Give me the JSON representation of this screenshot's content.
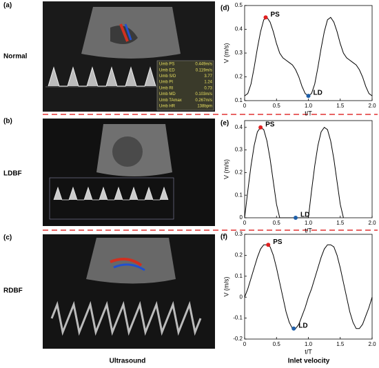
{
  "panels": [
    {
      "label": "(a)",
      "row": "Normal"
    },
    {
      "label": "(b)",
      "row": "LDBF"
    },
    {
      "label": "(c)",
      "row": "RDBF"
    }
  ],
  "ultrasound_table": [
    [
      "Umb PS",
      "0.449m/s"
    ],
    [
      "Umb ED",
      "0.119m/s"
    ],
    [
      "Umb S/D",
      "3.77"
    ],
    [
      "Umb PI",
      "1.24"
    ],
    [
      "Umb RI",
      "0.73"
    ],
    [
      "Umb MD",
      "0.103m/s"
    ],
    [
      "Umb TAmax",
      "0.267m/s"
    ],
    [
      "Umb HR",
      "138bpm"
    ]
  ],
  "captions": [
    "Ultrasound",
    "Inlet velocity"
  ],
  "chart_data": [
    {
      "type": "line",
      "panel": "(d)",
      "xlabel": "t/T",
      "ylabel": "V (m/s)",
      "xlim": [
        0,
        2
      ],
      "xticks": [
        0,
        0.5,
        {
          "value": 1,
          "label": "1.0"
        },
        1.5,
        {
          "value": 2,
          "label": "2.0"
        }
      ],
      "ylim": [
        0.1,
        0.5
      ],
      "yticks": [
        0.1,
        0.2,
        0.3,
        0.4,
        0.5
      ],
      "x": [
        0,
        0.05,
        0.1,
        0.15,
        0.2,
        0.25,
        0.3,
        0.35,
        0.4,
        0.45,
        0.5,
        0.55,
        0.6,
        0.65,
        0.7,
        0.75,
        0.8,
        0.85,
        0.9,
        0.95,
        1,
        1.05,
        1.1,
        1.15,
        1.2,
        1.25,
        1.3,
        1.35,
        1.4,
        1.45,
        1.5,
        1.55,
        1.6,
        1.65,
        1.7,
        1.75,
        1.8,
        1.85,
        1.9,
        1.95,
        2
      ],
      "series": [
        {
          "color": "#000000",
          "values": [
            0.12,
            0.13,
            0.17,
            0.24,
            0.32,
            0.39,
            0.44,
            0.45,
            0.43,
            0.39,
            0.34,
            0.3,
            0.28,
            0.27,
            0.26,
            0.25,
            0.23,
            0.2,
            0.16,
            0.13,
            0.12,
            0.13,
            0.17,
            0.24,
            0.32,
            0.39,
            0.44,
            0.45,
            0.43,
            0.39,
            0.34,
            0.3,
            0.28,
            0.27,
            0.26,
            0.25,
            0.23,
            0.2,
            0.16,
            0.13,
            0.12
          ]
        }
      ],
      "points": [
        {
          "label": "PS",
          "x": 0.33,
          "y": 0.45,
          "color": "#e02020"
        },
        {
          "label": "LD",
          "x": 1,
          "y": 0.12,
          "color": "#1f5fa8"
        }
      ]
    },
    {
      "type": "line",
      "panel": "(e)",
      "xlabel": "t/T",
      "ylabel": "V (m/s)",
      "xlim": [
        0,
        2
      ],
      "xticks": [
        0,
        0.5,
        {
          "value": 1,
          "label": "1.0"
        },
        1.5,
        {
          "value": 2,
          "label": "2.0"
        }
      ],
      "ylim": [
        0,
        0.43
      ],
      "yticks": [
        0,
        0.1,
        0.2,
        0.3,
        0.4
      ],
      "x": [
        0,
        0.05,
        0.1,
        0.15,
        0.2,
        0.25,
        0.3,
        0.35,
        0.4,
        0.45,
        0.5,
        0.55,
        0.6,
        0.65,
        0.7,
        0.75,
        0.8,
        0.85,
        0.9,
        0.95,
        1,
        1.05,
        1.1,
        1.15,
        1.2,
        1.25,
        1.3,
        1.35,
        1.4,
        1.45,
        1.5,
        1.55
      ],
      "series": [
        {
          "color": "#000000",
          "values": [
            0,
            0.12,
            0.23,
            0.32,
            0.38,
            0.4,
            0.39,
            0.34,
            0.26,
            0.16,
            0.06,
            0,
            0,
            0,
            0,
            0,
            0,
            0,
            0,
            0,
            0,
            0.12,
            0.23,
            0.32,
            0.38,
            0.4,
            0.39,
            0.34,
            0.26,
            0.16,
            0.06,
            0
          ]
        }
      ],
      "points": [
        {
          "label": "PS",
          "x": 0.25,
          "y": 0.4,
          "color": "#e02020"
        },
        {
          "label": "LD",
          "x": 0.8,
          "y": 0,
          "color": "#1f5fa8"
        }
      ]
    },
    {
      "type": "line",
      "panel": "(f)",
      "xlabel": "t/T",
      "ylabel": "V (m/s)",
      "xlim": [
        0,
        2
      ],
      "xticks": [
        0,
        0.5,
        {
          "value": 1,
          "label": "1.0"
        },
        1.5,
        {
          "value": 2,
          "label": "2.0"
        }
      ],
      "ylim": [
        -0.2,
        0.3
      ],
      "yticks": [
        -0.2,
        -0.1,
        0,
        0.1,
        0.2,
        0.3
      ],
      "x": [
        0,
        0.05,
        0.1,
        0.15,
        0.2,
        0.25,
        0.3,
        0.35,
        0.4,
        0.45,
        0.5,
        0.55,
        0.6,
        0.65,
        0.7,
        0.75,
        0.8,
        0.85,
        0.9,
        0.95,
        1,
        1.05,
        1.1,
        1.15,
        1.2,
        1.25,
        1.3,
        1.35,
        1.4,
        1.45,
        1.5,
        1.55,
        1.6,
        1.65,
        1.7,
        1.75,
        1.8,
        1.85,
        1.9,
        1.95,
        2
      ],
      "series": [
        {
          "color": "#000000",
          "values": [
            0,
            0.04,
            0.09,
            0.14,
            0.19,
            0.23,
            0.25,
            0.25,
            0.24,
            0.2,
            0.14,
            0.07,
            0,
            -0.07,
            -0.12,
            -0.15,
            -0.15,
            -0.13,
            -0.09,
            -0.05,
            0,
            0.04,
            0.09,
            0.14,
            0.19,
            0.23,
            0.25,
            0.25,
            0.24,
            0.2,
            0.14,
            0.07,
            0,
            -0.07,
            -0.12,
            -0.15,
            -0.15,
            -0.13,
            -0.09,
            -0.05,
            0
          ]
        }
      ],
      "points": [
        {
          "label": "PS",
          "x": 0.37,
          "y": 0.25,
          "color": "#e02020"
        },
        {
          "label": "LD",
          "x": 0.77,
          "y": -0.15,
          "color": "#1f5fa8"
        }
      ]
    }
  ]
}
